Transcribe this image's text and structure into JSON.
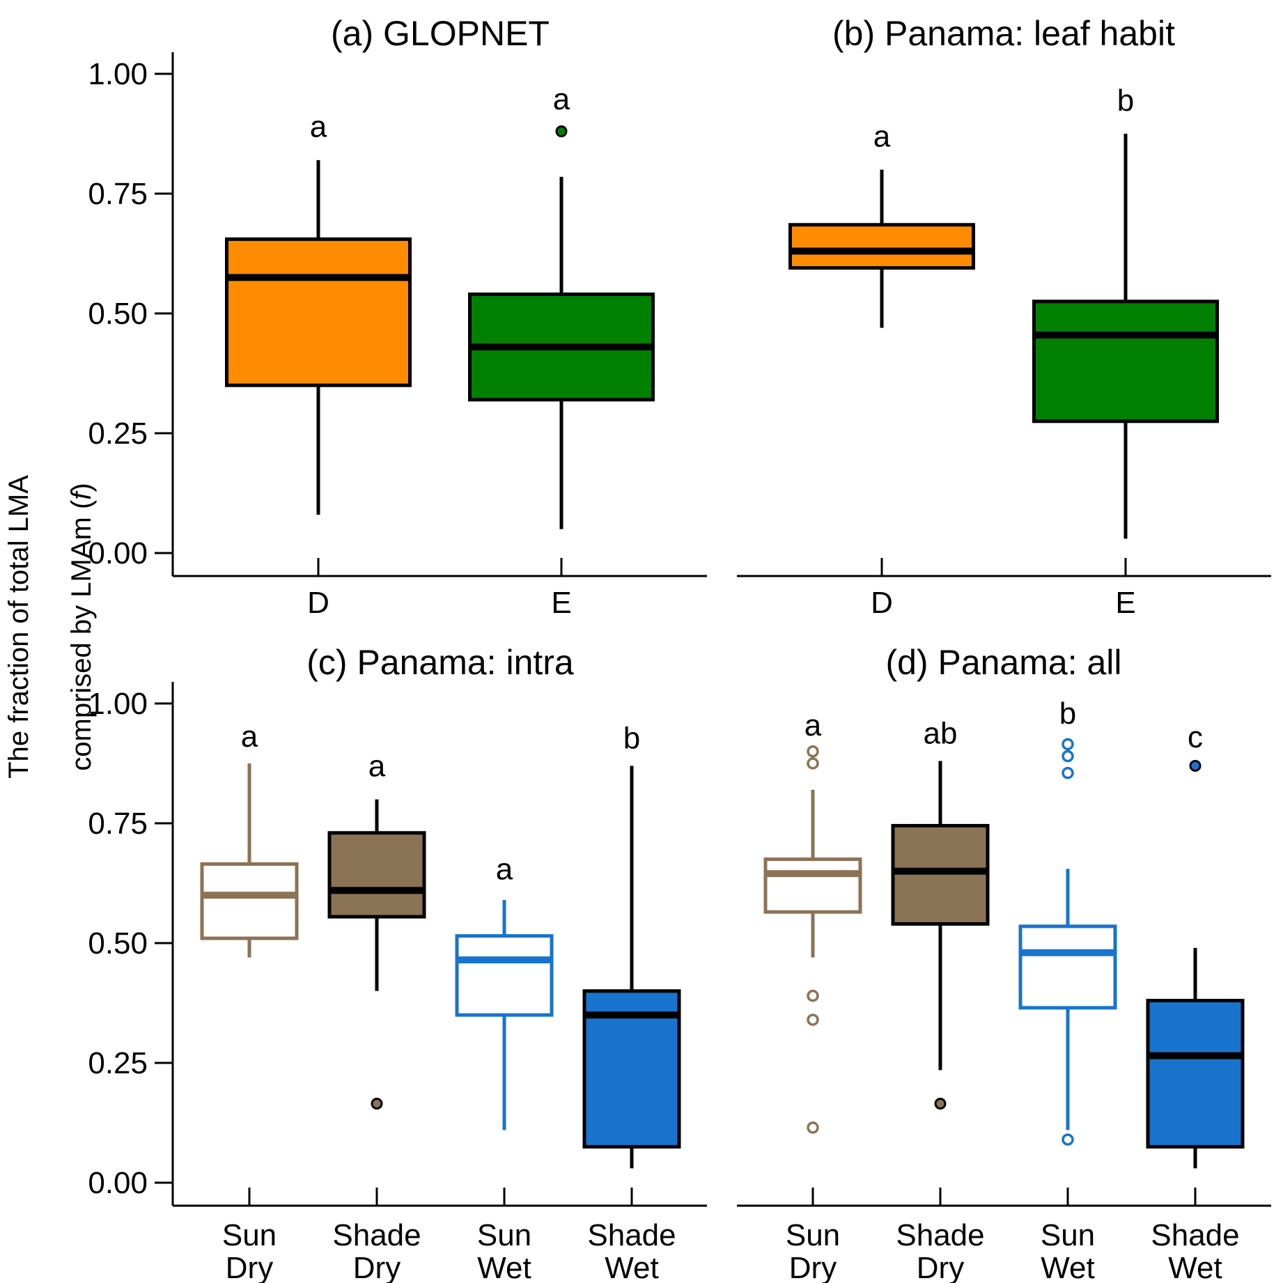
{
  "ylabel_line1": "The fraction of total LMA",
  "ylabel_line2_prefix": "comprised by LMAm (",
  "ylabel_line2_symbol": "f",
  "ylabel_line2_suffix": ")",
  "chart_data": [
    {
      "type": "box",
      "title": "(a) GLOPNET",
      "ylim": [
        0,
        1
      ],
      "yticks": [
        "0.00",
        "0.25",
        "0.50",
        "0.75",
        "1.00"
      ],
      "categories": [
        [
          "D"
        ],
        [
          "E"
        ]
      ],
      "boxes": [
        {
          "min": 0.08,
          "q1": 0.35,
          "median": 0.575,
          "q3": 0.655,
          "max": 0.82,
          "outliers": [],
          "letter": "a",
          "letter_y": 0.89,
          "fill": "#FF8C00",
          "line": "#000000",
          "outlier_fill": "#FF8C00"
        },
        {
          "min": 0.05,
          "q1": 0.32,
          "median": 0.43,
          "q3": 0.54,
          "max": 0.785,
          "outliers": [
            0.88
          ],
          "letter": "a",
          "letter_y": 0.948,
          "fill": "#008000",
          "line": "#000000",
          "outlier_fill": "#008000"
        }
      ]
    },
    {
      "type": "box",
      "title": "(b) Panama: leaf habit",
      "ylim": [
        0,
        1
      ],
      "yticks": [],
      "categories": [
        [
          "D"
        ],
        [
          "E"
        ]
      ],
      "boxes": [
        {
          "min": 0.47,
          "q1": 0.595,
          "median": 0.63,
          "q3": 0.685,
          "max": 0.8,
          "outliers": [],
          "letter": "a",
          "letter_y": 0.87,
          "fill": "#FF8C00",
          "line": "#000000",
          "outlier_fill": "#FF8C00"
        },
        {
          "min": 0.03,
          "q1": 0.275,
          "median": 0.455,
          "q3": 0.525,
          "max": 0.875,
          "outliers": [],
          "letter": "b",
          "letter_y": 0.945,
          "fill": "#008000",
          "line": "#000000",
          "outlier_fill": "#008000"
        }
      ]
    },
    {
      "type": "box",
      "title": "(c) Panama: intra",
      "ylim": [
        0,
        1
      ],
      "yticks": [
        "0.00",
        "0.25",
        "0.50",
        "0.75",
        "1.00"
      ],
      "categories": [
        [
          "Sun",
          "Dry"
        ],
        [
          "Shade",
          "Dry"
        ],
        [
          "Sun",
          "Wet"
        ],
        [
          "Shade",
          "Wet"
        ]
      ],
      "boxes": [
        {
          "min": 0.47,
          "q1": 0.51,
          "median": 0.6,
          "q3": 0.665,
          "max": 0.875,
          "outliers": [],
          "letter": "a",
          "letter_y": 0.932,
          "fill": "#FFFFFF",
          "line": "#8B7355",
          "outlier_fill": "none"
        },
        {
          "min": 0.4,
          "q1": 0.555,
          "median": 0.61,
          "q3": 0.73,
          "max": 0.8,
          "outliers": [
            0.165
          ],
          "letter": "a",
          "letter_y": 0.87,
          "fill": "#8B7355",
          "line": "#000000",
          "outlier_fill": "#8B7355"
        },
        {
          "min": 0.11,
          "q1": 0.35,
          "median": 0.465,
          "q3": 0.515,
          "max": 0.59,
          "outliers": [],
          "letter": "a",
          "letter_y": 0.655,
          "fill": "#FFFFFF",
          "line": "#1874CD",
          "outlier_fill": "none"
        },
        {
          "min": 0.03,
          "q1": 0.075,
          "median": 0.35,
          "q3": 0.4,
          "max": 0.87,
          "outliers": [],
          "letter": "b",
          "letter_y": 0.928,
          "fill": "#1874CD",
          "line": "#000000",
          "outlier_fill": "#1874CD"
        }
      ]
    },
    {
      "type": "box",
      "title": "(d) Panama: all",
      "ylim": [
        0,
        1
      ],
      "yticks": [],
      "categories": [
        [
          "Sun",
          "Dry"
        ],
        [
          "Shade",
          "Dry"
        ],
        [
          "Sun",
          "Wet"
        ],
        [
          "Shade",
          "Wet"
        ]
      ],
      "boxes": [
        {
          "min": 0.47,
          "q1": 0.565,
          "median": 0.645,
          "q3": 0.675,
          "max": 0.82,
          "outliers": [
            0.9,
            0.875,
            0.39,
            0.34,
            0.115
          ],
          "letter": "a",
          "letter_y": 0.955,
          "fill": "#FFFFFF",
          "line": "#8B7355",
          "outlier_fill": "none"
        },
        {
          "min": 0.235,
          "q1": 0.54,
          "median": 0.65,
          "q3": 0.745,
          "max": 0.88,
          "outliers": [
            0.165
          ],
          "letter": "ab",
          "letter_y": 0.938,
          "fill": "#8B7355",
          "line": "#000000",
          "outlier_fill": "#8B7355"
        },
        {
          "min": 0.11,
          "q1": 0.365,
          "median": 0.48,
          "q3": 0.535,
          "max": 0.655,
          "outliers": [
            0.915,
            0.89,
            0.855,
            0.09
          ],
          "letter": "b",
          "letter_y": 0.98,
          "fill": "#FFFFFF",
          "line": "#1874CD",
          "outlier_fill": "none"
        },
        {
          "min": 0.03,
          "q1": 0.075,
          "median": 0.265,
          "q3": 0.38,
          "max": 0.49,
          "outliers": [
            0.87
          ],
          "letter": "c",
          "letter_y": 0.93,
          "fill": "#1874CD",
          "line": "#000000",
          "outlier_fill": "#1874CD"
        }
      ]
    }
  ]
}
